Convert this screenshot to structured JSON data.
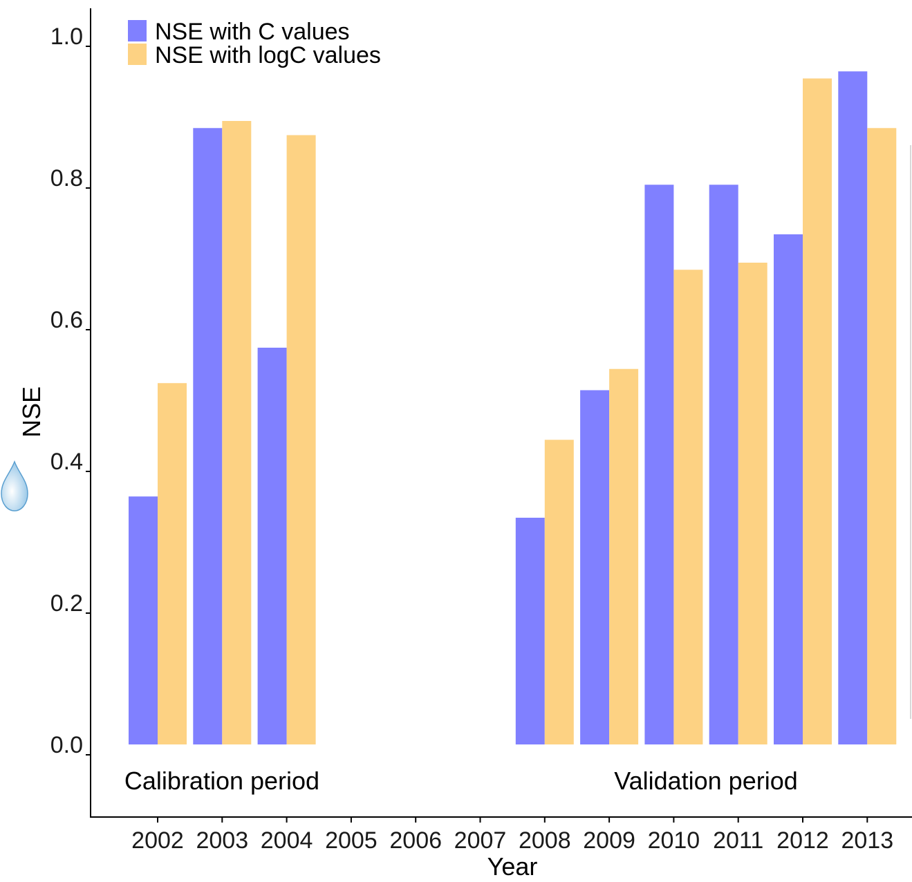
{
  "chart_data": {
    "type": "bar",
    "xlabel": "Year",
    "ylabel": "NSE",
    "ylim": [
      -0.2,
      1.05
    ],
    "y_ticks": [
      "0.0",
      "0.2",
      "0.4",
      "0.6",
      "0.8",
      "1.0"
    ],
    "categories": [
      "2002",
      "2003",
      "2004",
      "2005",
      "2006",
      "2007",
      "2008",
      "2009",
      "2010",
      "2011",
      "2012",
      "2013"
    ],
    "series": [
      {
        "name": "NSE with C values",
        "color": "#8080ff",
        "values": [
          0.35,
          0.87,
          0.56,
          null,
          null,
          null,
          0.32,
          0.5,
          0.79,
          0.79,
          0.72,
          0.95
        ]
      },
      {
        "name": "NSE with logC values",
        "color": "#fdd283",
        "values": [
          0.51,
          0.88,
          0.86,
          null,
          null,
          null,
          0.43,
          0.53,
          0.67,
          0.68,
          0.94,
          0.87
        ]
      }
    ],
    "annotations": [
      "Calibration period",
      "Validation period"
    ],
    "legend_position": "top-left",
    "grid": false
  }
}
